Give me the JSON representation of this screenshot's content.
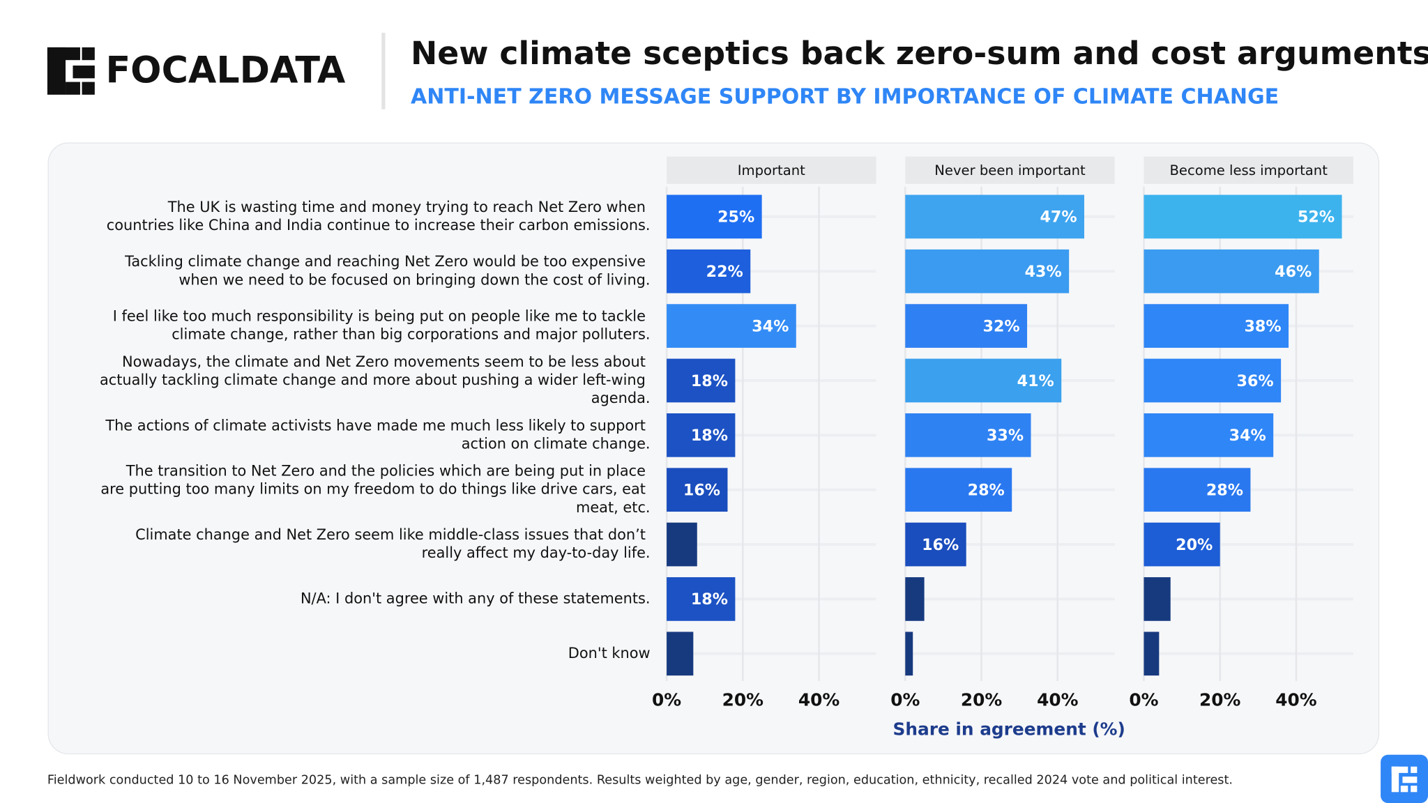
{
  "header": {
    "logo": "FOCALDATA",
    "title": "New climate sceptics back zero-sum and cost arguments",
    "subtitle": "ANTI-NET ZERO MESSAGE SUPPORT BY IMPORTANCE OF CLIMATE CHANGE"
  },
  "chart_data": {
    "type": "bar",
    "orientation": "horizontal",
    "categories": [
      "The UK is wasting time and money trying to reach Net Zero when countries like China and India continue to increase their carbon emissions.",
      "Tackling climate change and reaching Net Zero would be too expensive when we need to be focused on bringing down the cost of living.",
      "I feel like too much responsibility is being put on people like me to tackle climate change, rather than big corporations and major polluters.",
      "Nowadays, the climate and Net Zero movements seem to be less about actually tackling climate change and more about pushing a wider left-wing agenda.",
      "The actions of climate activists have made me much less likely to support action on climate change.",
      "The transition to Net Zero and the policies which are being put in place are putting too many limits on my freedom to do things like drive cars, eat meat, etc.",
      "Climate change and Net Zero seem like middle-class issues that don’t really affect my day-to-day life.",
      "N/A: I don't agree with any of these statements.",
      "Don't know"
    ],
    "series": [
      {
        "name": "Important",
        "values": [
          25,
          22,
          34,
          18,
          18,
          16,
          8,
          18,
          7
        ],
        "value_labels": [
          "25%",
          "22%",
          "34%",
          "18%",
          "18%",
          "16%",
          null,
          "18%",
          null
        ],
        "colors": [
          "#1f6ff2",
          "#1d5fdc",
          "#338cf5",
          "#1c52c4",
          "#1c52c4",
          "#1a4dbd",
          "#173a7f",
          "#1c52c4",
          "#173a7f"
        ]
      },
      {
        "name": "Never been important",
        "values": [
          47,
          43,
          32,
          41,
          33,
          28,
          16,
          5,
          2
        ],
        "value_labels": [
          "47%",
          "43%",
          "32%",
          "41%",
          "33%",
          "28%",
          "16%",
          null,
          null
        ],
        "colors": [
          "#3ea4ef",
          "#3a9bf0",
          "#2f80f2",
          "#3ba0ee",
          "#2f82f2",
          "#2a78f0",
          "#1a4dbd",
          "#173a7f",
          "#173a7f"
        ]
      },
      {
        "name": "Become less important",
        "values": [
          52,
          46,
          38,
          36,
          34,
          28,
          20,
          7,
          4
        ],
        "value_labels": [
          "52%",
          "46%",
          "38%",
          "36%",
          "34%",
          "28%",
          "20%",
          null,
          null
        ],
        "colors": [
          "#3db3ee",
          "#3a9bf0",
          "#2f86f6",
          "#2f86f6",
          "#2f86f6",
          "#2a78f0",
          "#1d5dd6",
          "#173a7f",
          "#173a7f"
        ]
      }
    ],
    "xlim": [
      0,
      55
    ],
    "xticks": [
      {
        "value": 0,
        "label": "0%"
      },
      {
        "value": 20,
        "label": "20%"
      },
      {
        "value": 40,
        "label": "40%"
      }
    ],
    "xlabel": "Share in agreement (%)",
    "grid": true
  },
  "footer": "Fieldwork conducted 10 to 16 November 2025, with a sample size of 1,487 respondents. Results weighted by age, gender, region, education, ethnicity, recalled 2024 vote and political interest."
}
